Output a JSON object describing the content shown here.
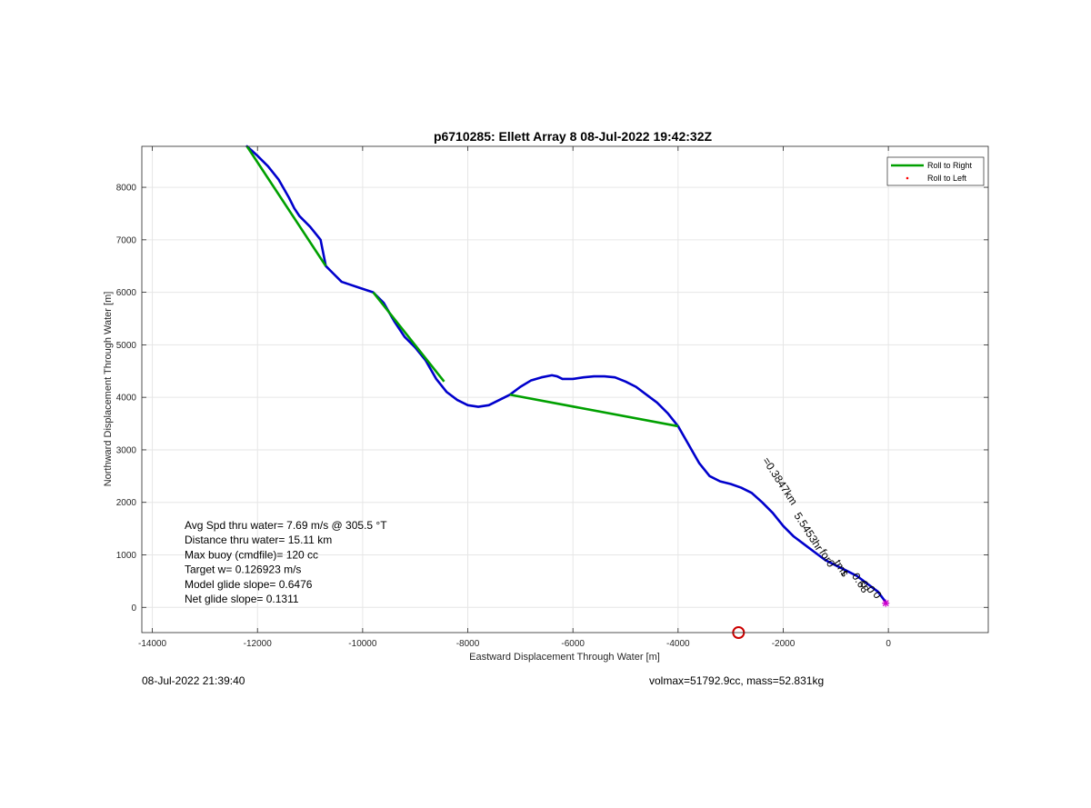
{
  "chart_data": {
    "type": "line",
    "title": "p6710285: Ellett Array 8 08-Jul-2022 19:42:32Z",
    "xlabel": "Eastward Displacement Through Water [m]",
    "ylabel": "Northward Displacement Through Water [m]",
    "xlim": [
      -14200,
      1900
    ],
    "ylim": [
      -480,
      8780
    ],
    "xticks": [
      -14000,
      -12000,
      -10000,
      -8000,
      -6000,
      -4000,
      -2000,
      0
    ],
    "yticks": [
      0,
      1000,
      2000,
      3000,
      4000,
      5000,
      6000,
      7000,
      8000
    ],
    "xtick_labels": [
      "-14000",
      "-12000",
      "-10000",
      "-8000",
      "-6000",
      "-4000",
      "-2000",
      "0"
    ],
    "ytick_labels": [
      "0",
      "1000",
      "2000",
      "3000",
      "4000",
      "5000",
      "6000",
      "7000",
      "8000"
    ],
    "grid": true,
    "legend_position": "top-right",
    "legend": [
      {
        "label": "Roll to Right",
        "color": "#00a000",
        "marker": "line"
      },
      {
        "label": "Roll to Left",
        "color": "#ff0000",
        "marker": "dot"
      }
    ],
    "series": [
      {
        "color": "#0000cc",
        "x": [
          -12200,
          -12000,
          -11800,
          -11600,
          -11400,
          -11300,
          -11200,
          -11000,
          -10800,
          -10700,
          -10600,
          -10400,
          -10100,
          -9800,
          -9600,
          -9400,
          -9200,
          -9000,
          -8800,
          -8600,
          -8400,
          -8200,
          -8000,
          -7800,
          -7600,
          -7400,
          -7200,
          -7000,
          -6800,
          -6600,
          -6400,
          -6300,
          -6200,
          -6000,
          -5800,
          -5600,
          -5400,
          -5200,
          -5000,
          -4800,
          -4600,
          -4400,
          -4200,
          -4000,
          -3800,
          -3600,
          -3400,
          -3200,
          -3000,
          -2800,
          -2600,
          -2400,
          -2200,
          -2000,
          -1800,
          -1600,
          -1400,
          -1200,
          -1000,
          -800,
          -600,
          -400,
          -200,
          -50
        ],
        "y": [
          8780,
          8600,
          8400,
          8150,
          7800,
          7600,
          7450,
          7250,
          7000,
          6500,
          6400,
          6200,
          6100,
          6000,
          5800,
          5450,
          5150,
          4950,
          4700,
          4350,
          4100,
          3950,
          3850,
          3820,
          3850,
          3950,
          4050,
          4200,
          4320,
          4380,
          4420,
          4400,
          4350,
          4350,
          4380,
          4400,
          4400,
          4380,
          4300,
          4200,
          4050,
          3900,
          3700,
          3450,
          3100,
          2750,
          2500,
          2400,
          2350,
          2280,
          2180,
          2000,
          1800,
          1550,
          1350,
          1200,
          1050,
          900,
          800,
          700,
          600,
          450,
          300,
          100
        ]
      },
      {
        "color": "#00a000",
        "segments": [
          {
            "x": [
              -12200,
              -10700
            ],
            "y": [
              8780,
              6500
            ]
          },
          {
            "x": [
              -9800,
              -8450
            ],
            "y": [
              6000,
              4300
            ]
          },
          {
            "x": [
              -7200,
              -4000
            ],
            "y": [
              4050,
              3450
            ]
          }
        ]
      }
    ],
    "annotations": [
      "Avg Spd thru water=  7.69 m/s @ 305.5 °T",
      "Distance thru water= 15.11 km",
      "Max buoy (cmdfile)= 120 cc",
      "Target w= 0.126923 m/s",
      "Model glide slope= 0.6476",
      "Net glide slope= 0.1311"
    ],
    "rotated_labels": [
      {
        "text": "=0.3847km",
        "x": -2400,
        "y": 2800
      },
      {
        "text": "5.5453hr",
        "x": -1800,
        "y": 1750
      },
      {
        "text": "for0",
        "x": -1320,
        "y": 1050
      },
      {
        "text": "tms",
        "x": -1040,
        "y": 850
      },
      {
        "text": "t",
        "x": -900,
        "y": 650
      },
      {
        "text": "0.68",
        "x": -700,
        "y": 600
      },
      {
        "text": "0",
        "x": -550,
        "y": 450
      },
      {
        "text": "0",
        "x": -420,
        "y": 350
      },
      {
        "text": "0",
        "x": -300,
        "y": 250
      }
    ],
    "red_circle": {
      "x": -2850,
      "y": -480
    }
  },
  "footer": {
    "timestamp": "08-Jul-2022 21:39:40",
    "info": "volmax=51792.9cc, mass=52.831kg"
  }
}
